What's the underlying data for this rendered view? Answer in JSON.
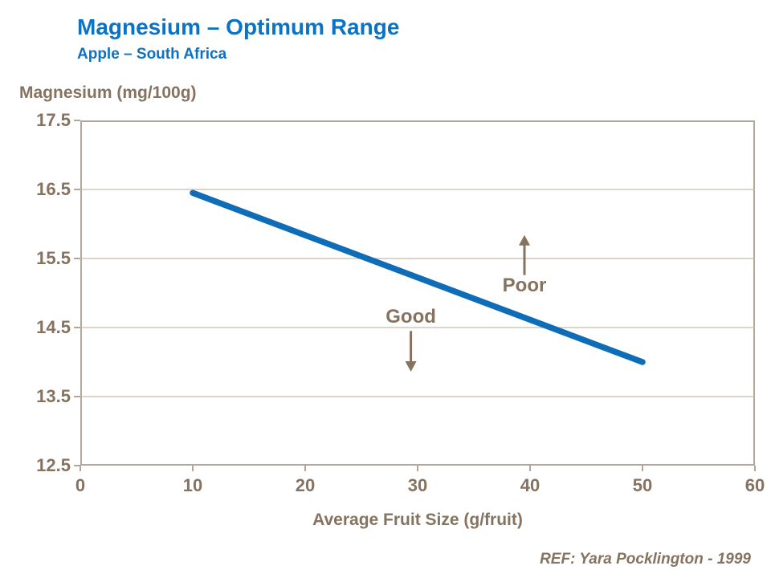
{
  "header": {
    "title": "Magnesium – Optimum Range",
    "subtitle": "Apple – South Africa"
  },
  "footer": {
    "reference": "REF: Yara Pocklington - 1999"
  },
  "colors": {
    "title_blue": "#0b72c4",
    "line_blue": "#0e6db6",
    "text_brown": "#85735f",
    "axis_border": "#b2a79a",
    "gridline": "#c6bcae"
  },
  "chart_data": {
    "type": "line",
    "title": "Magnesium – Optimum Range",
    "subtitle": "Apple – South Africa",
    "ylabel": "Magnesium (mg/100g)",
    "xlabel": "Average Fruit Size (g/fruit)",
    "xlim": [
      0,
      60
    ],
    "ylim": [
      12.5,
      17.5
    ],
    "x_ticks": [
      "0",
      "10",
      "20",
      "30",
      "40",
      "50",
      "60"
    ],
    "y_ticks": [
      "17.5",
      "16.5",
      "15.5",
      "14.5",
      "13.5",
      "12.5"
    ],
    "grid": "horizontal",
    "legend": "none",
    "line": {
      "x": [
        10,
        50
      ],
      "y": [
        16.45,
        14.0
      ]
    },
    "annotations": [
      {
        "label": "Good",
        "x": 29.4,
        "label_y": 14.65,
        "arrow_start_y": 14.45,
        "arrow_end_y": 13.86,
        "direction": "down"
      },
      {
        "label": "Poor",
        "x": 39.5,
        "label_y": 15.1,
        "arrow_start_y": 15.26,
        "arrow_end_y": 15.84,
        "direction": "up"
      }
    ]
  }
}
